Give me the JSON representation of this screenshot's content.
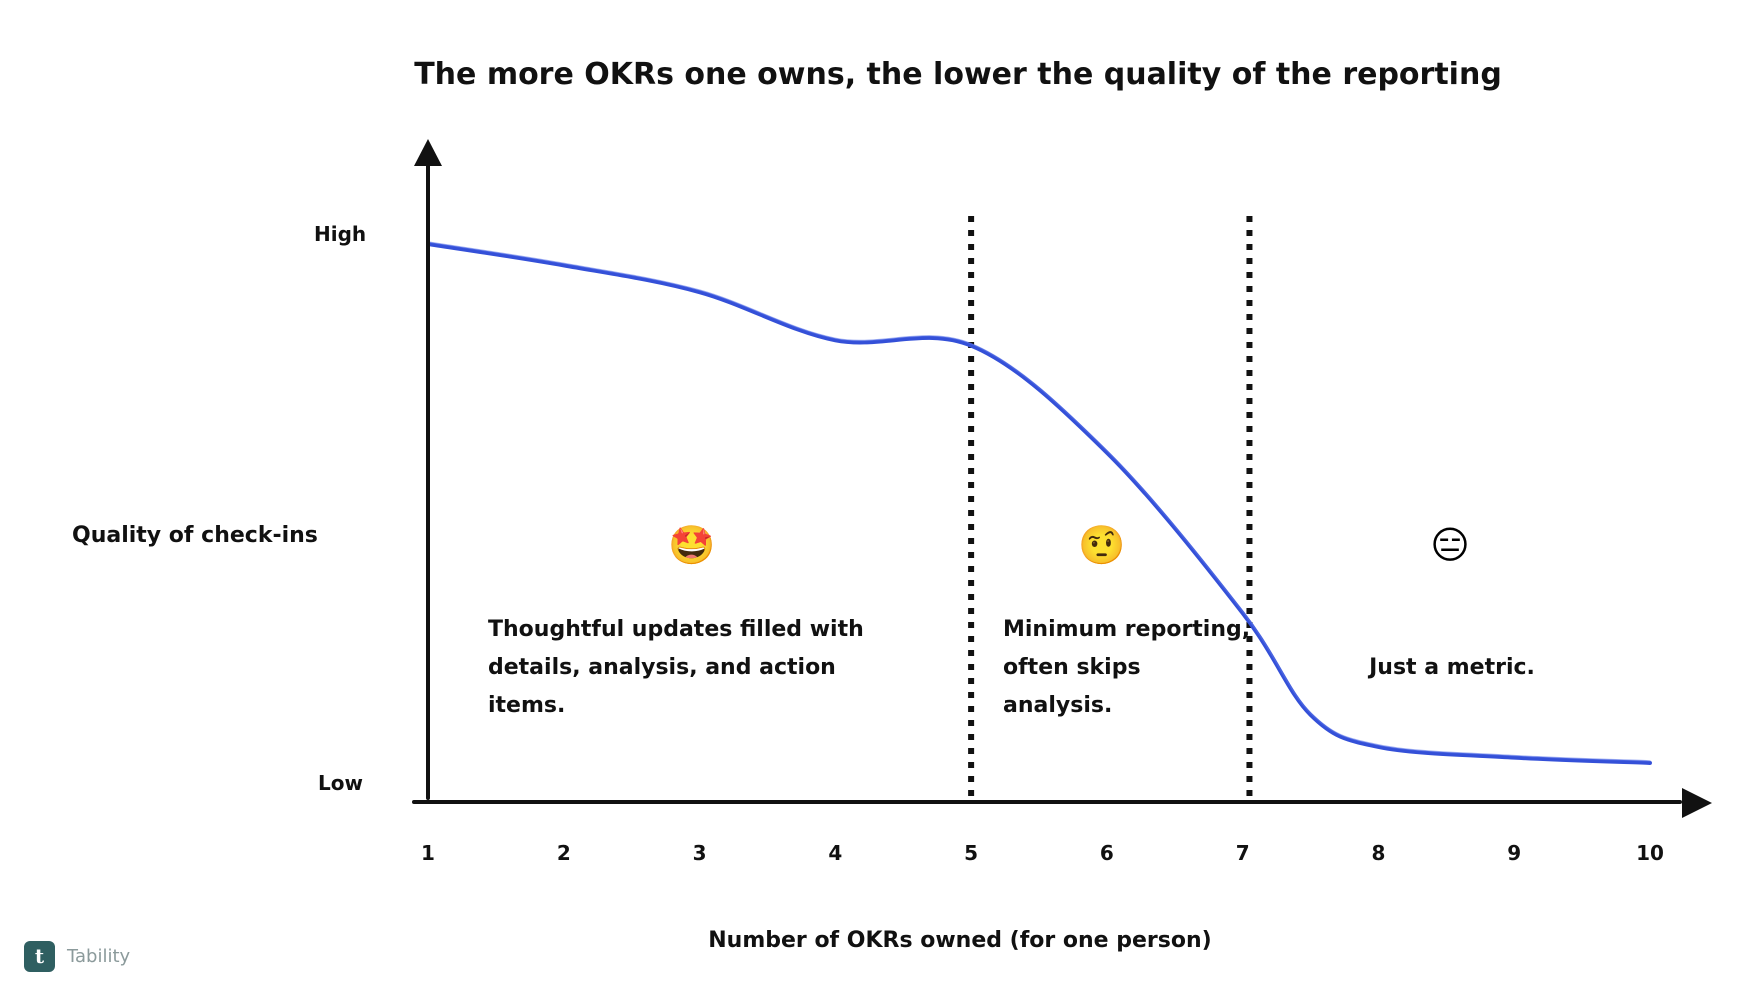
{
  "chart_data": {
    "type": "line",
    "title": "The more OKRs one owns, the lower the quality of the reporting",
    "xlabel": "Number of OKRs owned (for one person)",
    "ylabel": "Quality of check-ins",
    "x_ticks": [
      "1",
      "2",
      "3",
      "4",
      "5",
      "6",
      "7",
      "8",
      "9",
      "10"
    ],
    "xlim": [
      1,
      10
    ],
    "ylim": [
      0,
      1
    ],
    "y_tick_labels": {
      "high": "High",
      "low": "Low"
    },
    "series": [
      {
        "name": "Quality of check-ins",
        "color": "#3450d8",
        "x": [
          1,
          2,
          3,
          4,
          5,
          6,
          7,
          7.5,
          8,
          9,
          10
        ],
        "y": [
          1.0,
          0.96,
          0.91,
          0.82,
          0.81,
          0.61,
          0.31,
          0.12,
          0.06,
          0.04,
          0.03
        ]
      }
    ],
    "dividers": [
      {
        "x": 5,
        "style": "dotted"
      },
      {
        "x": 7.05,
        "style": "dotted"
      }
    ],
    "zones": [
      {
        "emoji": "🤩",
        "text": "Thoughtful updates filled with details, analysis, and action items."
      },
      {
        "emoji": "🤨",
        "text": "Minimum reporting, often skips analysis."
      },
      {
        "emoji": "😑",
        "text": "Just a metric."
      }
    ],
    "grid": false,
    "legend": "none"
  },
  "brand": {
    "logo_letter": "t",
    "name": "Tability"
  }
}
